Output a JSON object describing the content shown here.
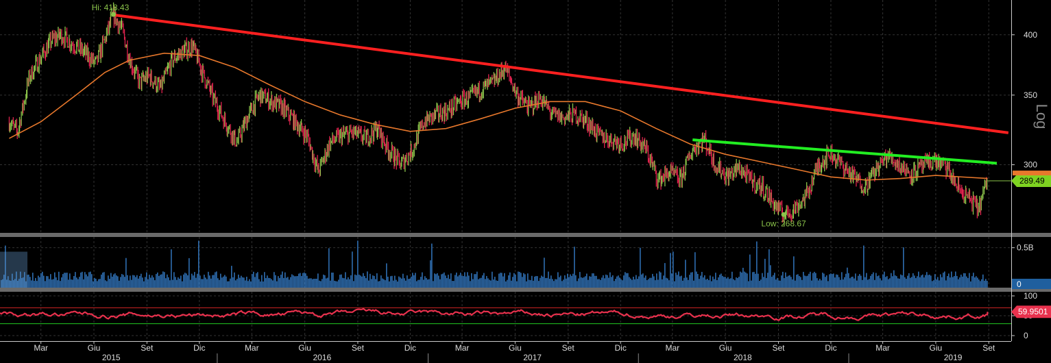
{
  "chart_data": {
    "type": "line",
    "price_panel": {
      "axis_label": "Log",
      "y_scale": "log",
      "ylim": [
        258,
        432
      ],
      "y_ticks": [
        300,
        350,
        400
      ],
      "last_price": "289.49",
      "high": {
        "label": "Hi: 418.43",
        "value": 418.43,
        "date": "2015-07"
      },
      "low": {
        "label": "Low: 268.67",
        "value": 268.67,
        "date": "2018-09"
      },
      "colors": {
        "up": "#8bc34a",
        "down": "#e0224e",
        "ma": "#e8782c",
        "resistance": "#ff2020",
        "support": "#22ee22",
        "last_tag": "#7ed321",
        "grid": "#333333"
      },
      "price_series": [
        [
          "2015-01-05",
          330
        ],
        [
          "2015-01-20",
          322
        ],
        [
          "2015-02-10",
          365
        ],
        [
          "2015-03-01",
          380
        ],
        [
          "2015-03-20",
          395
        ],
        [
          "2015-04-05",
          400
        ],
        [
          "2015-04-25",
          392
        ],
        [
          "2015-05-15",
          385
        ],
        [
          "2015-06-05",
          375
        ],
        [
          "2015-06-20",
          395
        ],
        [
          "2015-07-05",
          418.43
        ],
        [
          "2015-07-20",
          405
        ],
        [
          "2015-08-05",
          375
        ],
        [
          "2015-08-20",
          360
        ],
        [
          "2015-09-05",
          365
        ],
        [
          "2015-09-25",
          355
        ],
        [
          "2015-10-15",
          378
        ],
        [
          "2015-11-01",
          385
        ],
        [
          "2015-11-20",
          390
        ],
        [
          "2015-12-05",
          370
        ],
        [
          "2015-12-25",
          348
        ],
        [
          "2016-01-15",
          330
        ],
        [
          "2016-02-05",
          315
        ],
        [
          "2016-02-25",
          335
        ],
        [
          "2016-03-15",
          350
        ],
        [
          "2016-04-05",
          345
        ],
        [
          "2016-04-25",
          340
        ],
        [
          "2016-05-15",
          330
        ],
        [
          "2016-06-05",
          320
        ],
        [
          "2016-06-25",
          295
        ],
        [
          "2016-07-15",
          315
        ],
        [
          "2016-08-05",
          320
        ],
        [
          "2016-08-25",
          322
        ],
        [
          "2016-09-15",
          318
        ],
        [
          "2016-10-05",
          325
        ],
        [
          "2016-10-25",
          310
        ],
        [
          "2016-11-15",
          300
        ],
        [
          "2016-12-05",
          310
        ],
        [
          "2016-12-25",
          330
        ],
        [
          "2017-01-15",
          335
        ],
        [
          "2017-02-05",
          338
        ],
        [
          "2017-02-25",
          345
        ],
        [
          "2017-03-15",
          348
        ],
        [
          "2017-04-05",
          355
        ],
        [
          "2017-04-25",
          360
        ],
        [
          "2017-05-15",
          372
        ],
        [
          "2017-06-05",
          350
        ],
        [
          "2017-06-25",
          340
        ],
        [
          "2017-07-15",
          348
        ],
        [
          "2017-08-05",
          335
        ],
        [
          "2017-08-25",
          333
        ],
        [
          "2017-09-15",
          335
        ],
        [
          "2017-10-05",
          330
        ],
        [
          "2017-10-25",
          320
        ],
        [
          "2017-11-15",
          317
        ],
        [
          "2017-12-05",
          315
        ],
        [
          "2017-12-25",
          320
        ],
        [
          "2018-01-15",
          310
        ],
        [
          "2018-02-05",
          290
        ],
        [
          "2018-02-25",
          295
        ],
        [
          "2018-03-15",
          290
        ],
        [
          "2018-04-05",
          310
        ],
        [
          "2018-04-25",
          318
        ],
        [
          "2018-05-15",
          300
        ],
        [
          "2018-06-05",
          292
        ],
        [
          "2018-06-25",
          298
        ],
        [
          "2018-07-15",
          290
        ],
        [
          "2018-08-05",
          285
        ],
        [
          "2018-08-25",
          275
        ],
        [
          "2018-09-10",
          268.67
        ],
        [
          "2018-09-30",
          272
        ],
        [
          "2018-10-20",
          280
        ],
        [
          "2018-11-10",
          300
        ],
        [
          "2018-11-30",
          308
        ],
        [
          "2018-12-20",
          300
        ],
        [
          "2019-01-10",
          292
        ],
        [
          "2019-01-30",
          286
        ],
        [
          "2019-02-20",
          298
        ],
        [
          "2019-03-10",
          306
        ],
        [
          "2019-03-30",
          300
        ],
        [
          "2019-04-20",
          294
        ],
        [
          "2019-05-10",
          299
        ],
        [
          "2019-05-30",
          303
        ],
        [
          "2019-06-20",
          298
        ],
        [
          "2019-07-10",
          285
        ],
        [
          "2019-07-30",
          278
        ],
        [
          "2019-08-15",
          272
        ],
        [
          "2019-08-30",
          289.49
        ]
      ],
      "moving_average": [
        [
          "2015-01-05",
          318
        ],
        [
          "2015-03-01",
          330
        ],
        [
          "2015-05-01",
          350
        ],
        [
          "2015-06-20",
          368
        ],
        [
          "2015-08-01",
          378
        ],
        [
          "2015-10-01",
          384
        ],
        [
          "2015-12-01",
          382
        ],
        [
          "2016-02-01",
          372
        ],
        [
          "2016-04-01",
          358
        ],
        [
          "2016-06-01",
          345
        ],
        [
          "2016-08-01",
          335
        ],
        [
          "2016-10-01",
          328
        ],
        [
          "2016-12-01",
          323
        ],
        [
          "2017-02-01",
          325
        ],
        [
          "2017-04-01",
          332
        ],
        [
          "2017-06-01",
          340
        ],
        [
          "2017-08-01",
          345
        ],
        [
          "2017-10-01",
          345
        ],
        [
          "2017-12-01",
          338
        ],
        [
          "2018-02-01",
          325
        ],
        [
          "2018-04-01",
          314
        ],
        [
          "2018-06-01",
          307
        ],
        [
          "2018-08-01",
          302
        ],
        [
          "2018-10-01",
          297
        ],
        [
          "2018-12-01",
          292
        ],
        [
          "2019-02-01",
          290
        ],
        [
          "2019-04-01",
          291
        ],
        [
          "2019-06-01",
          293
        ],
        [
          "2019-08-30",
          291
        ]
      ],
      "trendlines": [
        {
          "name": "resistance",
          "from": [
            "2015-07-05",
            418
          ],
          "to": [
            "2019-10-05",
            322
          ]
        },
        {
          "name": "support",
          "from": [
            "2018-04-05",
            317
          ],
          "to": [
            "2019-09-15",
            301
          ]
        }
      ]
    },
    "volume_panel": {
      "y_ticks": [
        {
          "value": 0.5,
          "label": "0.5B"
        }
      ],
      "last_value": "0",
      "avg_level": 0.14,
      "max": 0.6,
      "bar_color": "#2e6db0",
      "tag_color": "#1f5f9e"
    },
    "rsi_panel": {
      "y_ticks": [
        0,
        50,
        100
      ],
      "last_value": "59.9501",
      "upper_band": 70,
      "lower_band": 30,
      "line_color": "#e8314d",
      "upper_color": "#d42424",
      "lower_color": "#22cc22"
    },
    "x_axis": {
      "months": [
        {
          "label": "Mar",
          "date": "2015-03-01"
        },
        {
          "label": "Giu",
          "date": "2015-06-01"
        },
        {
          "label": "Set",
          "date": "2015-09-01"
        },
        {
          "label": "Dic",
          "date": "2015-12-01"
        },
        {
          "label": "Mar",
          "date": "2016-03-01"
        },
        {
          "label": "Giu",
          "date": "2016-06-01"
        },
        {
          "label": "Set",
          "date": "2016-09-01"
        },
        {
          "label": "Dic",
          "date": "2016-12-01"
        },
        {
          "label": "Mar",
          "date": "2017-03-01"
        },
        {
          "label": "Giu",
          "date": "2017-06-01"
        },
        {
          "label": "Set",
          "date": "2017-09-01"
        },
        {
          "label": "Dic",
          "date": "2017-12-01"
        },
        {
          "label": "Mar",
          "date": "2018-03-01"
        },
        {
          "label": "Giu",
          "date": "2018-06-01"
        },
        {
          "label": "Set",
          "date": "2018-09-01"
        },
        {
          "label": "Dic",
          "date": "2018-12-01"
        },
        {
          "label": "Mar",
          "date": "2019-03-01"
        },
        {
          "label": "Giu",
          "date": "2019-06-01"
        },
        {
          "label": "Set",
          "date": "2019-09-01"
        }
      ],
      "years": [
        {
          "label": "2015",
          "date": "2015-07-01"
        },
        {
          "label": "2016",
          "date": "2016-07-01"
        },
        {
          "label": "2017",
          "date": "2017-07-01"
        },
        {
          "label": "2018",
          "date": "2018-07-01"
        },
        {
          "label": "2019",
          "date": "2019-07-01"
        }
      ],
      "range": [
        "2014-12-20",
        "2019-10-10"
      ]
    }
  }
}
